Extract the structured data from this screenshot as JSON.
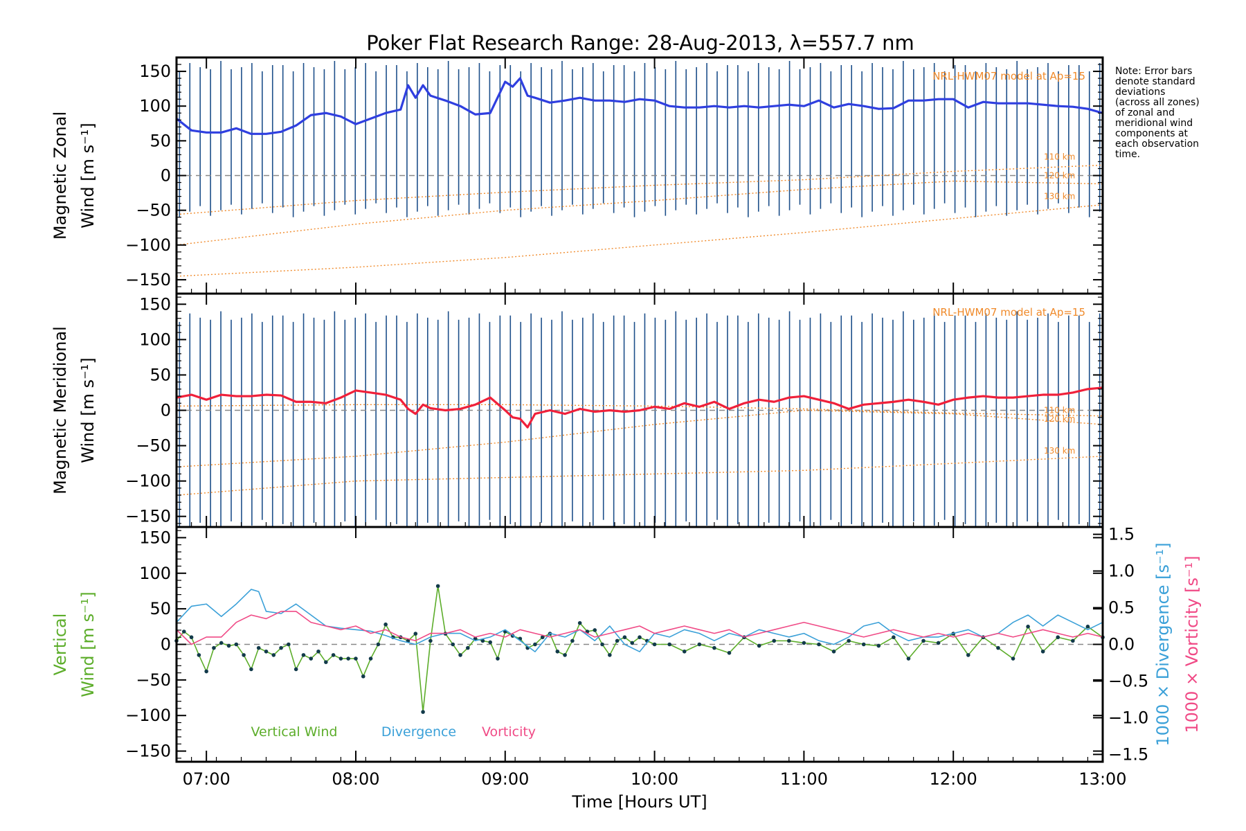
{
  "colors": {
    "zonal": "#2f3fe0",
    "meridional": "#f0203a",
    "vertical": "#5cad2a",
    "divergence": "#3aa0d8",
    "vorticity": "#f04a86",
    "model": "#f08a2a",
    "errorbar": "#1d4f8a",
    "zero_line": "#888888"
  },
  "note_lines": [
    "Note: Error bars",
    "denote standard",
    "deviations",
    "(across all zones)",
    "of zonal and",
    "meridional wind",
    "components at",
    "each observation",
    "time."
  ],
  "chart_data": [
    {
      "type": "line",
      "name": "zonal-panel",
      "title": "Poker Flat Research Range: 28-Aug-2013, λ=557.7 nm",
      "ylabel_lines": [
        "Magnetic Zonal",
        "Wind [m s⁻¹]"
      ],
      "ylim": [
        -170,
        170
      ],
      "xlim": [
        6.8,
        13.0
      ],
      "yticks": [
        {
          "value": 150,
          "label": "150"
        },
        {
          "value": 100,
          "label": "100"
        },
        {
          "value": 50,
          "label": "50"
        },
        {
          "value": 0,
          "label": "0"
        },
        {
          "value": -50,
          "label": "−50"
        },
        {
          "value": -100,
          "label": "−100"
        },
        {
          "value": -150,
          "label": "−150"
        }
      ],
      "model_label": "NRL-HWM07 model at Ap=15",
      "model_curves": [
        {
          "label": "110 km",
          "x": [
            6.8,
            8.0,
            9.0,
            10.0,
            11.0,
            12.0,
            13.0
          ],
          "y": [
            -56,
            -36,
            -24,
            -14,
            -6,
            6,
            15
          ]
        },
        {
          "label": "120 km",
          "x": [
            6.8,
            8.0,
            9.0,
            10.0,
            11.0,
            12.0,
            13.0
          ],
          "y": [
            -100,
            -70,
            -50,
            -36,
            -20,
            -8,
            -12
          ]
        },
        {
          "label": "130 km",
          "x": [
            6.8,
            8.0,
            9.0,
            10.0,
            11.0,
            12.0,
            13.0
          ],
          "y": [
            -145,
            -132,
            -118,
            -100,
            -82,
            -62,
            -42
          ]
        }
      ],
      "errorbar_range": [
        -50,
        165
      ],
      "series": [
        {
          "name": "Zonal Wind",
          "x": [
            6.8,
            6.9,
            7.0,
            7.1,
            7.2,
            7.3,
            7.4,
            7.5,
            7.6,
            7.7,
            7.8,
            7.9,
            8.0,
            8.1,
            8.2,
            8.3,
            8.35,
            8.4,
            8.45,
            8.5,
            8.6,
            8.7,
            8.8,
            8.9,
            9.0,
            9.05,
            9.1,
            9.15,
            9.2,
            9.3,
            9.4,
            9.5,
            9.6,
            9.7,
            9.8,
            9.9,
            10.0,
            10.1,
            10.2,
            10.3,
            10.4,
            10.5,
            10.6,
            10.7,
            10.8,
            10.9,
            11.0,
            11.1,
            11.2,
            11.3,
            11.4,
            11.5,
            11.6,
            11.7,
            11.8,
            11.9,
            12.0,
            12.1,
            12.2,
            12.3,
            12.4,
            12.5,
            12.6,
            12.7,
            12.8,
            12.9,
            13.0
          ],
          "y": [
            82,
            65,
            62,
            62,
            68,
            60,
            60,
            63,
            72,
            87,
            90,
            85,
            74,
            82,
            90,
            95,
            130,
            112,
            130,
            115,
            108,
            100,
            88,
            90,
            135,
            128,
            140,
            115,
            112,
            105,
            108,
            112,
            108,
            108,
            106,
            110,
            108,
            100,
            98,
            98,
            100,
            98,
            100,
            98,
            100,
            102,
            100,
            108,
            98,
            103,
            100,
            96,
            97,
            108,
            108,
            110,
            110,
            98,
            106,
            104,
            104,
            104,
            102,
            100,
            99,
            96,
            90
          ]
        }
      ]
    },
    {
      "type": "line",
      "name": "meridional-panel",
      "ylabel_lines": [
        "Magnetic Meridional",
        "Wind [m s⁻¹]"
      ],
      "ylim": [
        -165,
        165
      ],
      "xlim": [
        6.8,
        13.0
      ],
      "yticks": [
        {
          "value": 150,
          "label": "150"
        },
        {
          "value": 100,
          "label": "100"
        },
        {
          "value": 50,
          "label": "50"
        },
        {
          "value": 0,
          "label": "0"
        },
        {
          "value": -50,
          "label": "−50"
        },
        {
          "value": -100,
          "label": "−100"
        },
        {
          "value": -150,
          "label": "−150"
        }
      ],
      "model_label": "NRL-HWM07 model at Ap=15",
      "model_curves": [
        {
          "label": "110 km",
          "x": [
            6.8,
            8.0,
            9.0,
            10.0,
            11.0,
            12.0,
            13.0
          ],
          "y": [
            6,
            8,
            8,
            6,
            2,
            -4,
            -8
          ]
        },
        {
          "label": "120 km",
          "x": [
            6.8,
            8.0,
            9.0,
            10.0,
            11.0,
            12.0,
            13.0
          ],
          "y": [
            -80,
            -65,
            -45,
            -20,
            0,
            -5,
            -20
          ]
        },
        {
          "label": "130 km",
          "x": [
            6.8,
            8.0,
            9.0,
            10.0,
            11.0,
            12.0,
            13.0
          ],
          "y": [
            -120,
            -100,
            -95,
            -90,
            -85,
            -75,
            -65
          ]
        }
      ],
      "errorbar_range": [
        -165,
        140
      ],
      "series": [
        {
          "name": "Meridional Wind",
          "x": [
            6.8,
            6.9,
            7.0,
            7.1,
            7.2,
            7.3,
            7.4,
            7.5,
            7.6,
            7.7,
            7.8,
            7.9,
            8.0,
            8.1,
            8.2,
            8.3,
            8.35,
            8.4,
            8.45,
            8.5,
            8.6,
            8.7,
            8.8,
            8.9,
            9.0,
            9.05,
            9.1,
            9.15,
            9.2,
            9.3,
            9.4,
            9.5,
            9.6,
            9.7,
            9.8,
            9.9,
            10.0,
            10.1,
            10.2,
            10.3,
            10.4,
            10.5,
            10.6,
            10.7,
            10.8,
            10.9,
            11.0,
            11.1,
            11.2,
            11.3,
            11.4,
            11.5,
            11.6,
            11.7,
            11.8,
            11.9,
            12.0,
            12.1,
            12.2,
            12.3,
            12.4,
            12.5,
            12.6,
            12.7,
            12.8,
            12.9,
            13.0
          ],
          "y": [
            18,
            22,
            15,
            22,
            20,
            20,
            22,
            21,
            12,
            12,
            10,
            18,
            28,
            25,
            22,
            15,
            2,
            -5,
            8,
            3,
            0,
            2,
            8,
            18,
            0,
            -10,
            -12,
            -24,
            -5,
            0,
            -5,
            2,
            -2,
            0,
            -2,
            0,
            5,
            2,
            10,
            5,
            12,
            2,
            10,
            15,
            12,
            18,
            20,
            15,
            10,
            2,
            8,
            10,
            12,
            15,
            12,
            8,
            15,
            18,
            20,
            18,
            18,
            20,
            22,
            22,
            25,
            30,
            32
          ]
        }
      ]
    },
    {
      "type": "line",
      "name": "vertical-panel",
      "ylabel_lines": [
        "Vertical",
        "Wind [m s⁻¹]"
      ],
      "ylim": [
        -165,
        165
      ],
      "xlim": [
        6.8,
        13.0
      ],
      "yticks": [
        {
          "value": 150,
          "label": "150"
        },
        {
          "value": 100,
          "label": "100"
        },
        {
          "value": 50,
          "label": "50"
        },
        {
          "value": 0,
          "label": "0"
        },
        {
          "value": -50,
          "label": "−50"
        },
        {
          "value": -100,
          "label": "−100"
        },
        {
          "value": -150,
          "label": "−150"
        }
      ],
      "y2_label_divergence": "1000 × Divergence [s⁻¹]",
      "y2_label_vorticity": "1000 × Vorticity [s⁻¹]",
      "y2lim": [
        -1.6,
        1.6
      ],
      "y2ticks": [
        {
          "value": 1.5,
          "label": "1.5"
        },
        {
          "value": 1.0,
          "label": "1.0"
        },
        {
          "value": 0.5,
          "label": "0.5"
        },
        {
          "value": 0.0,
          "label": "0.0"
        },
        {
          "value": -0.5,
          "label": "−0.5"
        },
        {
          "value": -1.0,
          "label": "−1.0"
        },
        {
          "value": -1.5,
          "label": "−1.5"
        }
      ],
      "xticks": [
        {
          "value": 7,
          "label": "07:00"
        },
        {
          "value": 8,
          "label": "08:00"
        },
        {
          "value": 9,
          "label": "09:00"
        },
        {
          "value": 10,
          "label": "10:00"
        },
        {
          "value": 11,
          "label": "11:00"
        },
        {
          "value": 12,
          "label": "12:00"
        },
        {
          "value": 13,
          "label": "13:00"
        }
      ],
      "xlabel": "Time [Hours UT]",
      "legend": [
        {
          "label": "Vertical Wind",
          "key": "vertical"
        },
        {
          "label": "Divergence",
          "key": "divergence"
        },
        {
          "label": "Vorticity",
          "key": "vorticity"
        }
      ],
      "series": [
        {
          "name": "Vertical Wind",
          "axis": "left",
          "x": [
            6.8,
            6.85,
            6.9,
            6.95,
            7.0,
            7.05,
            7.1,
            7.15,
            7.2,
            7.25,
            7.3,
            7.35,
            7.4,
            7.45,
            7.5,
            7.55,
            7.6,
            7.65,
            7.7,
            7.75,
            7.8,
            7.85,
            7.9,
            7.95,
            8.0,
            8.05,
            8.1,
            8.15,
            8.2,
            8.25,
            8.3,
            8.35,
            8.4,
            8.45,
            8.5,
            8.55,
            8.6,
            8.65,
            8.7,
            8.75,
            8.8,
            8.85,
            8.9,
            8.95,
            9.0,
            9.05,
            9.1,
            9.15,
            9.2,
            9.25,
            9.3,
            9.35,
            9.4,
            9.45,
            9.5,
            9.55,
            9.6,
            9.65,
            9.7,
            9.75,
            9.8,
            9.85,
            9.9,
            9.95,
            10.0,
            10.1,
            10.2,
            10.3,
            10.4,
            10.5,
            10.6,
            10.7,
            10.8,
            10.9,
            11.0,
            11.1,
            11.2,
            11.3,
            11.4,
            11.5,
            11.6,
            11.7,
            11.8,
            11.9,
            12.0,
            12.1,
            12.2,
            12.3,
            12.4,
            12.5,
            12.6,
            12.7,
            12.8,
            12.9,
            13.0
          ],
          "y": [
            5,
            18,
            10,
            -15,
            -38,
            -5,
            2,
            -2,
            0,
            -15,
            -35,
            -5,
            -10,
            -15,
            -5,
            0,
            -35,
            -15,
            -20,
            -10,
            -25,
            -15,
            -20,
            -20,
            -20,
            -45,
            -20,
            0,
            28,
            10,
            10,
            5,
            15,
            -95,
            5,
            82,
            15,
            0,
            -15,
            -5,
            8,
            5,
            3,
            -20,
            18,
            12,
            8,
            -5,
            0,
            10,
            15,
            -10,
            -15,
            5,
            30,
            18,
            20,
            0,
            -15,
            5,
            10,
            2,
            10,
            5,
            0,
            0,
            -10,
            0,
            -5,
            -12,
            10,
            -2,
            5,
            5,
            2,
            0,
            -10,
            5,
            0,
            -2,
            10,
            -20,
            5,
            2,
            15,
            -15,
            10,
            -5,
            -20,
            25,
            -10,
            10,
            5,
            25,
            10
          ]
        },
        {
          "name": "Divergence",
          "axis": "right",
          "x": [
            6.8,
            6.9,
            7.0,
            7.1,
            7.2,
            7.3,
            7.35,
            7.4,
            7.5,
            7.6,
            7.7,
            7.8,
            7.9,
            8.0,
            8.1,
            8.2,
            8.3,
            8.4,
            8.5,
            8.6,
            8.7,
            8.8,
            8.9,
            9.0,
            9.1,
            9.2,
            9.3,
            9.4,
            9.5,
            9.6,
            9.7,
            9.8,
            9.9,
            10.0,
            10.1,
            10.2,
            10.3,
            10.4,
            10.5,
            10.6,
            10.7,
            10.8,
            10.9,
            11.0,
            11.1,
            11.2,
            11.3,
            11.4,
            11.5,
            11.6,
            11.7,
            11.8,
            11.9,
            12.0,
            12.1,
            12.2,
            12.3,
            12.4,
            12.5,
            12.6,
            12.7,
            12.8,
            12.9,
            13.0
          ],
          "y": [
            0.3,
            0.52,
            0.55,
            0.38,
            0.55,
            0.75,
            0.72,
            0.45,
            0.42,
            0.55,
            0.4,
            0.25,
            0.22,
            0.2,
            0.18,
            0.12,
            0.05,
            0.0,
            0.1,
            0.15,
            0.15,
            0.05,
            0.1,
            0.2,
            0.05,
            -0.1,
            0.15,
            0.1,
            0.2,
            0.05,
            0.25,
            0.0,
            -0.1,
            0.15,
            0.1,
            0.2,
            0.15,
            0.05,
            0.15,
            0.1,
            0.2,
            0.15,
            0.1,
            0.15,
            0.05,
            0.0,
            0.1,
            0.25,
            0.3,
            0.15,
            0.05,
            0.1,
            0.1,
            0.15,
            0.2,
            0.1,
            0.15,
            0.3,
            0.4,
            0.25,
            0.4,
            0.3,
            0.2,
            0.3
          ]
        },
        {
          "name": "Vorticity",
          "axis": "right",
          "x": [
            6.8,
            6.9,
            7.0,
            7.1,
            7.2,
            7.3,
            7.4,
            7.5,
            7.6,
            7.7,
            7.8,
            7.9,
            8.0,
            8.1,
            8.2,
            8.3,
            8.4,
            8.5,
            8.6,
            8.7,
            8.8,
            8.9,
            9.0,
            9.1,
            9.2,
            9.3,
            9.4,
            9.5,
            9.6,
            9.7,
            9.8,
            9.9,
            10.0,
            10.1,
            10.2,
            10.3,
            10.4,
            10.5,
            10.6,
            10.7,
            10.8,
            10.9,
            11.0,
            11.1,
            11.2,
            11.3,
            11.4,
            11.5,
            11.6,
            11.7,
            11.8,
            11.9,
            12.0,
            12.1,
            12.2,
            12.3,
            12.4,
            12.5,
            12.6,
            12.7,
            12.8,
            12.9,
            13.0
          ],
          "y": [
            0.2,
            0.0,
            0.1,
            0.1,
            0.3,
            0.4,
            0.35,
            0.45,
            0.45,
            0.3,
            0.25,
            0.2,
            0.25,
            0.15,
            0.2,
            0.1,
            0.05,
            0.15,
            0.15,
            0.2,
            0.1,
            0.15,
            0.1,
            0.2,
            0.15,
            0.1,
            0.15,
            0.2,
            0.1,
            0.15,
            0.2,
            0.25,
            0.15,
            0.2,
            0.25,
            0.2,
            0.15,
            0.2,
            0.1,
            0.15,
            0.2,
            0.25,
            0.3,
            0.25,
            0.2,
            0.15,
            0.1,
            0.15,
            0.2,
            0.15,
            0.1,
            0.15,
            0.1,
            0.15,
            0.1,
            0.15,
            0.1,
            0.15,
            0.2,
            0.15,
            0.1,
            0.15,
            0.1
          ]
        }
      ]
    }
  ]
}
